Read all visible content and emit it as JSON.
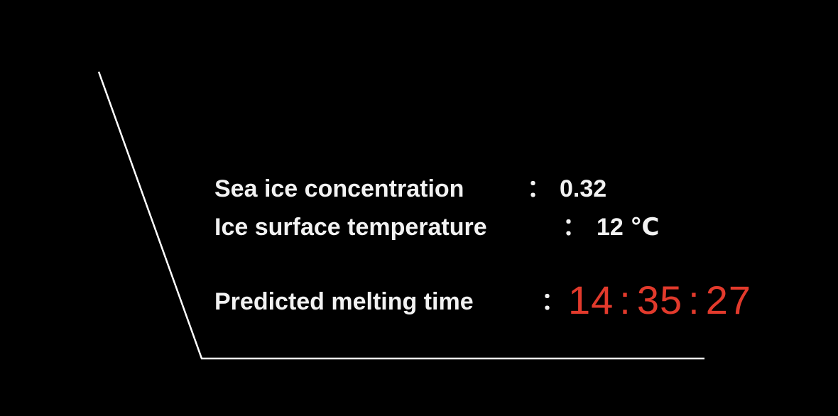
{
  "rows": [
    {
      "label": "Sea ice concentration",
      "separator": "：",
      "value": "0.32"
    },
    {
      "label": "Ice surface temperature",
      "separator": "：",
      "value": "12 ℃"
    }
  ],
  "prediction": {
    "label": "Predicted melting time",
    "separator": "：",
    "hours": "14",
    "minutes": "35",
    "seconds": "27"
  },
  "colors": {
    "background": "#000000",
    "text": "#f2f2f2",
    "timer": "#e23a2c",
    "frame_line": "#ffffff"
  }
}
